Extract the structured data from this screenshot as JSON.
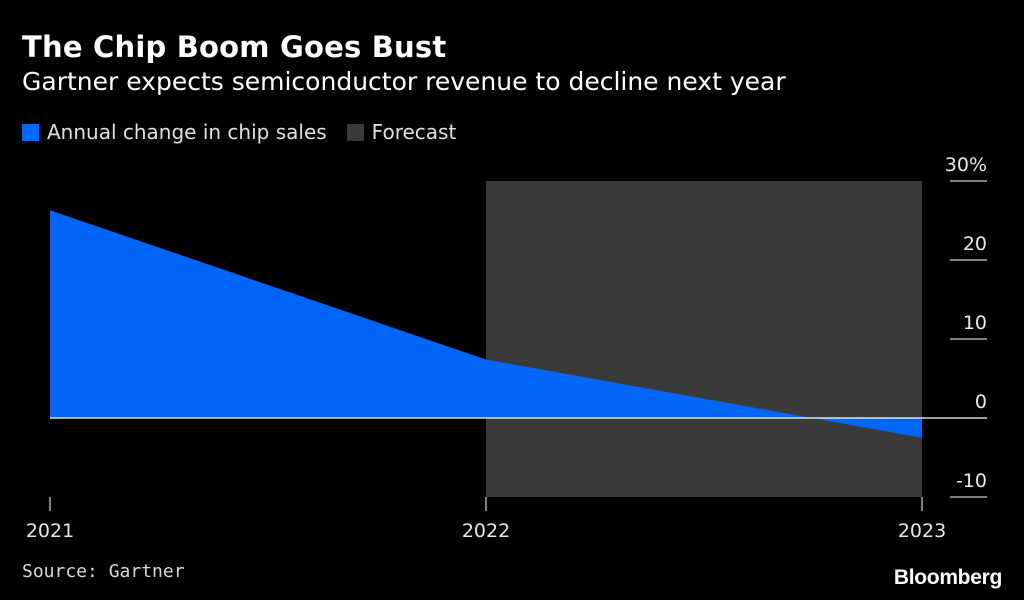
{
  "header": {
    "title": "The Chip Boom Goes Bust",
    "subtitle": "Gartner expects semiconductor revenue to decline next year"
  },
  "legend": {
    "series_label": "Annual change in chip sales",
    "forecast_label": "Forecast"
  },
  "footer": {
    "source": "Source: Gartner",
    "brand": "Bloomberg"
  },
  "colors": {
    "background": "#000000",
    "series": "#0068ff",
    "forecast": "#3a3a3a",
    "zero_line": "#ffffff",
    "tick": "#ffffff"
  },
  "chart_data": {
    "type": "area",
    "title": "The Chip Boom Goes Bust",
    "subtitle": "Gartner expects semiconductor revenue to decline next year",
    "x": [
      2021,
      2022,
      2023
    ],
    "x_tick_labels": [
      "2021",
      "2022",
      "2023"
    ],
    "series": [
      {
        "name": "Annual change in chip sales",
        "values": [
          26.3,
          7.4,
          -2.5
        ]
      }
    ],
    "forecast_range": [
      2022,
      2023
    ],
    "y_ticks": [
      30,
      20,
      10,
      0,
      -10
    ],
    "y_tick_labels": [
      "30%",
      "20",
      "10",
      "0",
      "-10"
    ],
    "ylim": [
      -10,
      30
    ],
    "xlabel": "",
    "ylabel": "",
    "legend_position": "top-left",
    "y_axis_position": "right"
  }
}
